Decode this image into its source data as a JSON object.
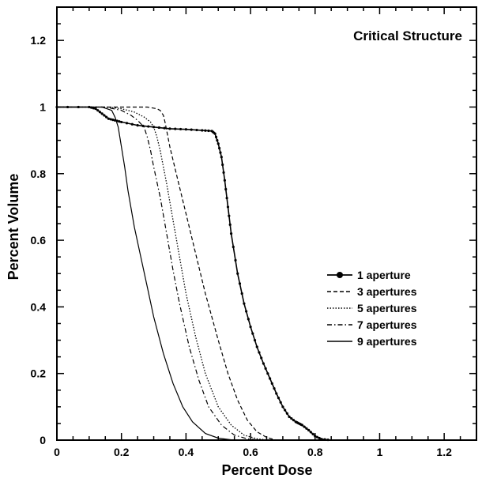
{
  "chart_data": {
    "type": "line",
    "title": "Critical Structure",
    "xlabel": "Percent Dose",
    "ylabel": "Percent Volume",
    "xlim": [
      0,
      1.3
    ],
    "ylim": [
      0,
      1.3
    ],
    "x_ticks": [
      0,
      0.2,
      0.4,
      0.6,
      0.8,
      1,
      1.2
    ],
    "y_ticks": [
      0,
      0.2,
      0.4,
      0.6,
      0.8,
      1,
      1.2
    ],
    "x_tick_labels": [
      "0",
      "0.2",
      "0.4",
      "0.6",
      "0.8",
      "1",
      "1.2"
    ],
    "y_tick_labels": [
      "0",
      "0.2",
      "0.4",
      "0.6",
      "0.8",
      "1",
      "1.2"
    ],
    "legend_position": "right-middle",
    "grid": false,
    "series": [
      {
        "name": "1 aperture",
        "style": "solid-markers",
        "x": [
          0,
          0.1,
          0.12,
          0.14,
          0.16,
          0.18,
          0.2,
          0.25,
          0.3,
          0.35,
          0.4,
          0.45,
          0.48,
          0.49,
          0.5,
          0.51,
          0.52,
          0.53,
          0.54,
          0.56,
          0.58,
          0.6,
          0.62,
          0.64,
          0.66,
          0.68,
          0.7,
          0.72,
          0.74,
          0.75,
          0.76,
          0.78,
          0.8,
          0.82,
          0.85
        ],
        "y": [
          1.0,
          1.0,
          0.995,
          0.98,
          0.965,
          0.96,
          0.955,
          0.945,
          0.94,
          0.935,
          0.933,
          0.93,
          0.928,
          0.92,
          0.89,
          0.85,
          0.78,
          0.7,
          0.62,
          0.5,
          0.41,
          0.34,
          0.28,
          0.23,
          0.185,
          0.14,
          0.1,
          0.07,
          0.055,
          0.05,
          0.045,
          0.03,
          0.012,
          0.003,
          0.0
        ]
      },
      {
        "name": "3 apertures",
        "style": "dashed",
        "x": [
          0,
          0.1,
          0.2,
          0.28,
          0.31,
          0.32,
          0.33,
          0.335,
          0.34,
          0.35,
          0.37,
          0.4,
          0.43,
          0.46,
          0.5,
          0.53,
          0.56,
          0.59,
          0.62,
          0.65,
          0.68
        ],
        "y": [
          1.0,
          1.0,
          1.0,
          1.0,
          0.995,
          0.99,
          0.975,
          0.955,
          0.93,
          0.88,
          0.8,
          0.68,
          0.56,
          0.44,
          0.3,
          0.2,
          0.12,
          0.06,
          0.025,
          0.008,
          0.0
        ]
      },
      {
        "name": "5 apertures",
        "style": "dotted",
        "x": [
          0,
          0.1,
          0.16,
          0.2,
          0.24,
          0.27,
          0.29,
          0.3,
          0.31,
          0.32,
          0.34,
          0.36,
          0.38,
          0.4,
          0.43,
          0.46,
          0.5,
          0.54,
          0.58,
          0.62,
          0.66
        ],
        "y": [
          1.0,
          1.0,
          1.0,
          0.995,
          0.985,
          0.97,
          0.955,
          0.94,
          0.91,
          0.87,
          0.77,
          0.66,
          0.55,
          0.44,
          0.31,
          0.2,
          0.1,
          0.045,
          0.015,
          0.004,
          0.0
        ]
      },
      {
        "name": "7 apertures",
        "style": "dash-dot",
        "x": [
          0,
          0.1,
          0.15,
          0.2,
          0.23,
          0.25,
          0.27,
          0.28,
          0.29,
          0.3,
          0.32,
          0.34,
          0.36,
          0.38,
          0.41,
          0.44,
          0.47,
          0.51,
          0.55,
          0.59,
          0.63
        ],
        "y": [
          1.0,
          1.0,
          1.0,
          0.99,
          0.975,
          0.96,
          0.94,
          0.91,
          0.87,
          0.82,
          0.73,
          0.62,
          0.51,
          0.41,
          0.28,
          0.18,
          0.1,
          0.045,
          0.015,
          0.004,
          0.0
        ]
      },
      {
        "name": "9 apertures",
        "style": "solid",
        "x": [
          0,
          0.1,
          0.14,
          0.17,
          0.18,
          0.19,
          0.2,
          0.21,
          0.22,
          0.24,
          0.26,
          0.28,
          0.3,
          0.33,
          0.36,
          0.39,
          0.42,
          0.46,
          0.5,
          0.54,
          0.58
        ],
        "y": [
          1.0,
          1.0,
          1.0,
          0.99,
          0.97,
          0.94,
          0.88,
          0.82,
          0.75,
          0.64,
          0.55,
          0.46,
          0.37,
          0.26,
          0.17,
          0.1,
          0.055,
          0.02,
          0.006,
          0.001,
          0.0
        ]
      }
    ]
  }
}
